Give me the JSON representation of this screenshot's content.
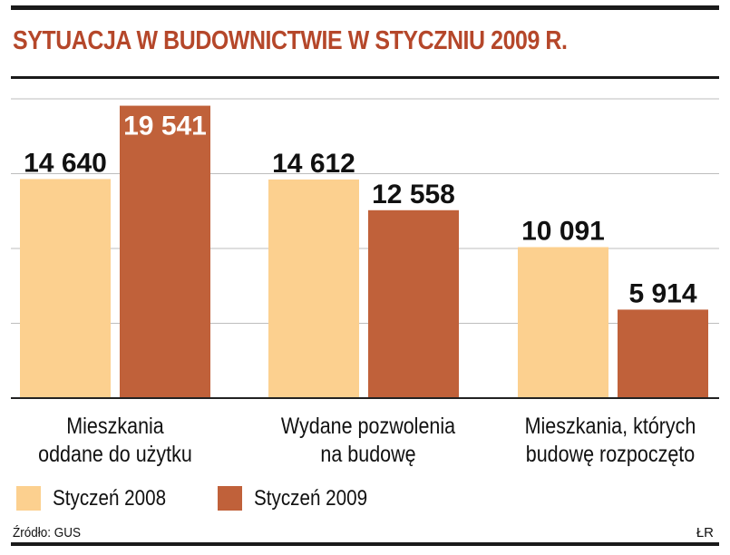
{
  "title": "SYTUACJA W BUDOWNICTWIE W STYCZNIU 2009 R.",
  "source": "Źródło: GUS",
  "credit": "ŁR",
  "colors": {
    "series1": "#fcd08f",
    "series2": "#c0613a",
    "title": "#b5472a",
    "grid": "#bdbdbd",
    "axis": "#222222"
  },
  "chart_data": {
    "type": "bar",
    "title": "SYTUACJA W BUDOWNICTWIE W STYCZNIU 2009 R.",
    "categories": [
      "Mieszkania oddane do użytku",
      "Wydane pozwolenia na budowę",
      "Mieszkania, których budowę rozpoczęto"
    ],
    "category_lines": [
      [
        "Mieszkania",
        "oddane do użytku"
      ],
      [
        "Wydane pozwolenia",
        "na budowę"
      ],
      [
        "Mieszkania, których",
        "budowę rozpoczęto"
      ]
    ],
    "series": [
      {
        "name": "Styczeń 2008",
        "values": [
          14640,
          14612,
          10091
        ],
        "labels": [
          "14 640",
          "14 612",
          "10 091"
        ]
      },
      {
        "name": "Styczeń 2009",
        "values": [
          19541,
          12558,
          5914
        ],
        "labels": [
          "19 541",
          "12 558",
          "5 914"
        ]
      }
    ],
    "ylim": [
      0,
      20000
    ],
    "grid": true,
    "legend_position": "bottom-left",
    "xlabel": "",
    "ylabel": ""
  }
}
